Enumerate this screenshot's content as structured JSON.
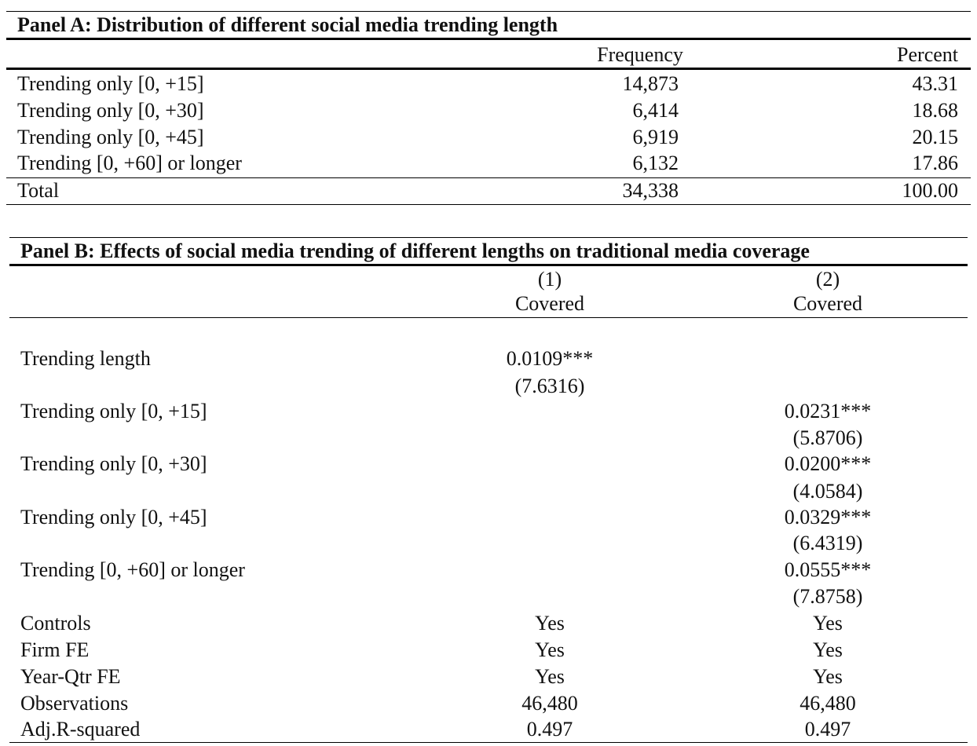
{
  "panel_a": {
    "title": "Panel A: Distribution of different social media trending length",
    "headers": [
      "Frequency",
      "Percent"
    ],
    "rows": [
      {
        "label": "Trending only [0, +15]",
        "frequency": "14,873",
        "percent": "43.31"
      },
      {
        "label": "Trending only [0, +30]",
        "frequency": "6,414",
        "percent": "18.68"
      },
      {
        "label": "Trending only [0, +45]",
        "frequency": "6,919",
        "percent": "20.15"
      },
      {
        "label": "Trending [0, +60] or longer",
        "frequency": "6,132",
        "percent": "17.86"
      }
    ],
    "total": {
      "label": "Total",
      "frequency": "34,338",
      "percent": "100.00"
    }
  },
  "panel_b": {
    "title": "Panel B: Effects of social media trending of different lengths on traditional media coverage",
    "columns": [
      {
        "number": "(1)",
        "dep_var": "Covered"
      },
      {
        "number": "(2)",
        "dep_var": "Covered"
      }
    ],
    "coef_rows": [
      {
        "label": "Trending length",
        "col1_coef": "0.0109***",
        "col1_t": "(7.6316)",
        "col2_coef": "",
        "col2_t": ""
      },
      {
        "label": "Trending only [0, +15]",
        "col1_coef": "",
        "col1_t": "",
        "col2_coef": "0.0231***",
        "col2_t": "(5.8706)"
      },
      {
        "label": "Trending only [0, +30]",
        "col1_coef": "",
        "col1_t": "",
        "col2_coef": "0.0200***",
        "col2_t": "(4.0584)"
      },
      {
        "label": "Trending only [0, +45]",
        "col1_coef": "",
        "col1_t": "",
        "col2_coef": "0.0329***",
        "col2_t": "(6.4319)"
      },
      {
        "label": "Trending [0, +60] or longer",
        "col1_coef": "",
        "col1_t": "",
        "col2_coef": "0.0555***",
        "col2_t": "(7.8758)"
      }
    ],
    "stat_rows": [
      {
        "label": "Controls",
        "col1": "Yes",
        "col2": "Yes"
      },
      {
        "label": "Firm FE",
        "col1": "Yes",
        "col2": "Yes"
      },
      {
        "label": "Year-Qtr FE",
        "col1": "Yes",
        "col2": "Yes"
      },
      {
        "label": "Observations",
        "col1": "46,480",
        "col2": "46,480"
      },
      {
        "label": "Adj.R-squared",
        "col1": "0.497",
        "col2": "0.497"
      }
    ]
  }
}
